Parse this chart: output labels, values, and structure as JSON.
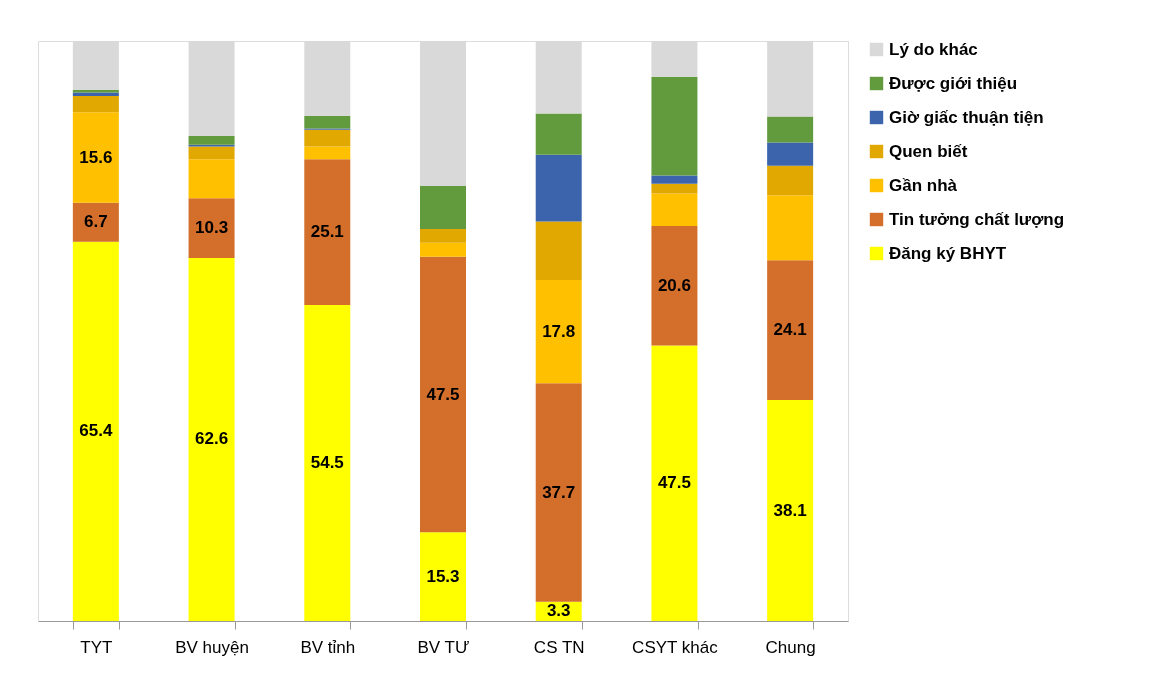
{
  "chart_data": {
    "type": "bar",
    "stacked": true,
    "categories": [
      "TYT",
      "BV huyện",
      "BV tỉnh",
      "BV TƯ",
      "CS TN",
      "CSYT khác",
      "Chung"
    ],
    "ylim": [
      0,
      100
    ],
    "tick_labels": "x",
    "legend": "right",
    "grid": false,
    "series": [
      {
        "name": "Đăng ký BHYT",
        "color": "#ffff00",
        "values": [
          65.4,
          62.6,
          54.5,
          15.3,
          3.3,
          47.5,
          38.1
        ],
        "value_labels": [
          "65.4",
          "62.6",
          "54.5",
          "15.3",
          "3.3",
          "47.5",
          "38.1"
        ]
      },
      {
        "name": "Tin tưởng chất lượng",
        "color": "#d46e2b",
        "values": [
          6.7,
          10.3,
          25.1,
          47.5,
          37.7,
          20.6,
          24.1
        ],
        "value_labels": [
          "6.7",
          "10.3",
          "25.1",
          "47.5",
          "37.7",
          "20.6",
          "24.1"
        ]
      },
      {
        "name": "Gần nhà",
        "color": "#ffc000",
        "values": [
          15.6,
          6.7,
          2.2,
          2.4,
          17.8,
          5.6,
          11.2
        ],
        "value_labels": [
          "15.6",
          null,
          null,
          null,
          "17.8",
          null,
          null
        ]
      },
      {
        "name": "Quen biết",
        "color": "#e0a800",
        "values": [
          2.8,
          2.2,
          2.9,
          2.4,
          10.1,
          1.7,
          5.1
        ]
      },
      {
        "name": "Giờ giấc thuận tiện",
        "color": "#3b64ad",
        "values": [
          0.6,
          0.3,
          0.2,
          0,
          11.5,
          1.4,
          4.0
        ]
      },
      {
        "name": "Được giới thiệu",
        "color": "#629a3e",
        "values": [
          0.5,
          1.5,
          2.2,
          7.4,
          7.1,
          17.0,
          4.5
        ]
      },
      {
        "name": "Lý do khác",
        "color": "#d9d9d9",
        "values": [
          8.4,
          16.4,
          12.9,
          25.0,
          12.5,
          6.2,
          13.0
        ]
      }
    ]
  }
}
